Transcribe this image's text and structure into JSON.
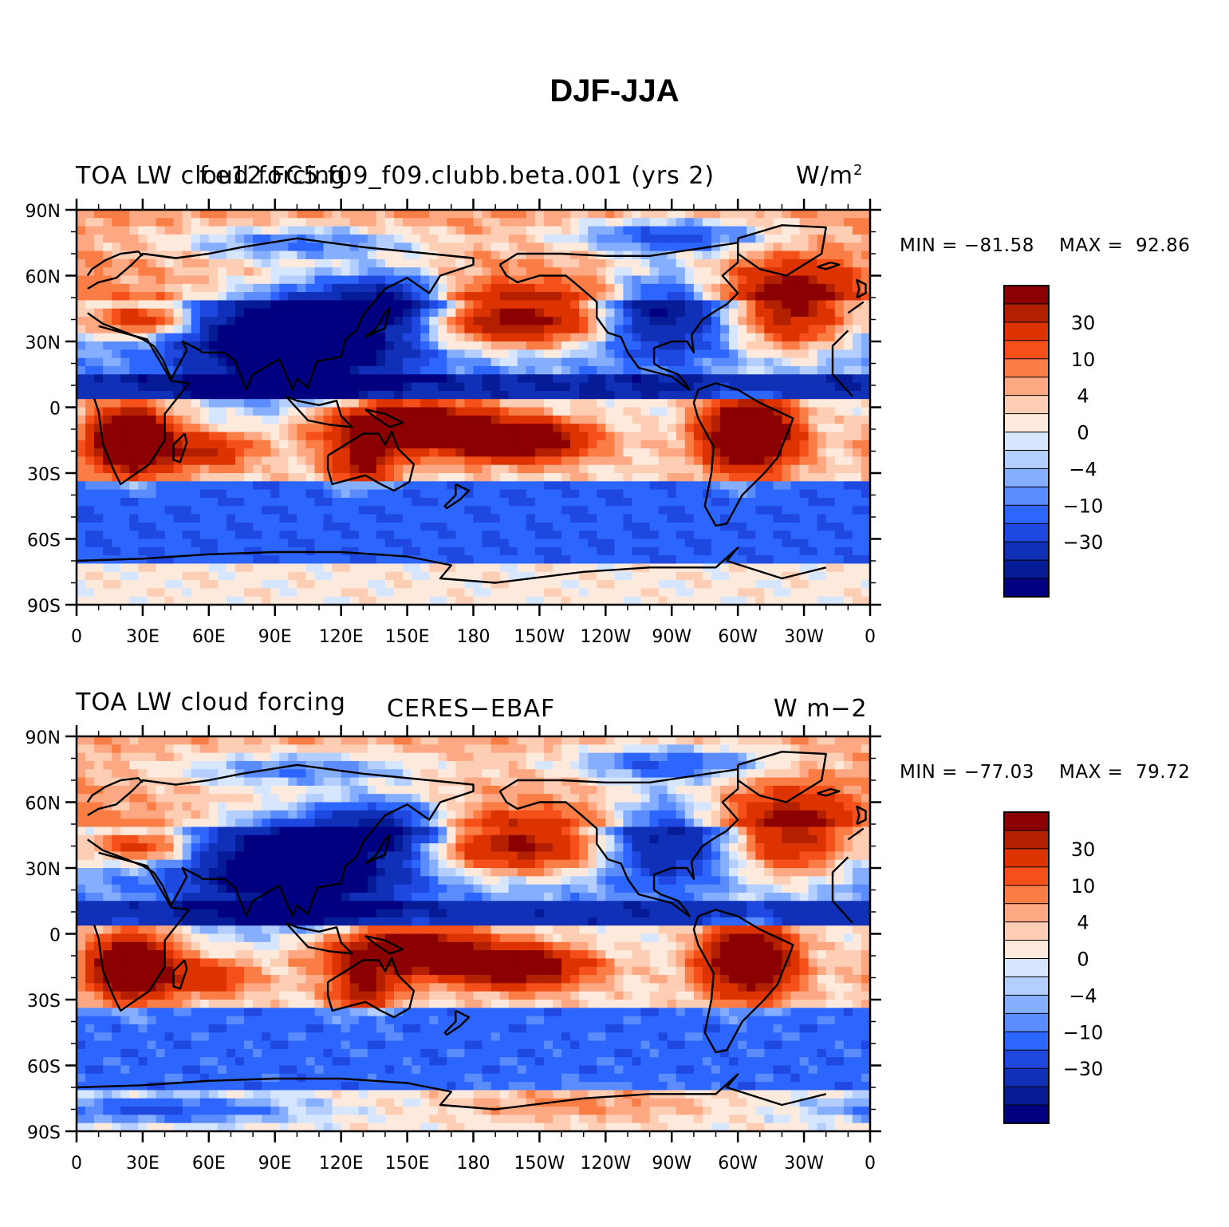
{
  "title": "DJF-JJA",
  "panels": [
    {
      "left_label": "TOA LW cloud forcing",
      "center_label": "f.e12.FC5.f09_f09.clubb.beta.001 (yrs 2)",
      "units_base": "W/m",
      "units_sup": "2",
      "min_label": "MIN = −81.58",
      "max_label": "MAX =  92.86",
      "min": -81.58,
      "max": 92.86
    },
    {
      "left_label": "TOA LW cloud forcing",
      "center_label": "CERES−EBAF",
      "units_base": "W m−2",
      "units_sup": "",
      "min_label": "MIN = −77.03",
      "max_label": "MAX =  79.72",
      "min": -77.03,
      "max": 79.72
    }
  ],
  "lat_ticks": [
    "90N",
    "60N",
    "30N",
    "0",
    "30S",
    "60S",
    "90S"
  ],
  "lon_ticks": [
    "0",
    "30E",
    "60E",
    "90E",
    "120E",
    "150E",
    "180",
    "150W",
    "120W",
    "90W",
    "60W",
    "30W",
    "0"
  ],
  "colorbar": {
    "colors": [
      "#8b0000",
      "#b22000",
      "#dd3300",
      "#f5501a",
      "#fa7d45",
      "#fda882",
      "#fdcdb4",
      "#feeadd",
      "#d6e6ff",
      "#b3ceff",
      "#86aeff",
      "#5a8cff",
      "#2d66ff",
      "#1e48e0",
      "#1030b8",
      "#061b96",
      "#000080"
    ],
    "labels": [
      "30",
      "10",
      "4",
      "0",
      "−4",
      "−10",
      "−30"
    ]
  },
  "chart_data": {
    "type": "heatmap",
    "title": "DJF-JJA",
    "variable": "TOA LW cloud forcing",
    "x_axis": {
      "range": [
        0,
        360
      ],
      "ticks": [
        "0",
        "30E",
        "60E",
        "90E",
        "120E",
        "150E",
        "180",
        "150W",
        "120W",
        "90W",
        "60W",
        "30W",
        "0"
      ]
    },
    "y_axis": {
      "range": [
        -90,
        90
      ],
      "ticks": [
        "90N",
        "60N",
        "30N",
        "0",
        "30S",
        "60S",
        "90S"
      ]
    },
    "contour_levels": [
      -40,
      -35,
      -30,
      -20,
      -15,
      -10,
      -7,
      -4,
      -2,
      0,
      2,
      4,
      7,
      10,
      15,
      20,
      30,
      35
    ],
    "level_labels": [
      "30",
      "10",
      "4",
      "0",
      "−4",
      "−10",
      "−30"
    ],
    "series": [
      {
        "name": "f.e12.FC5.f09_f09.clubb.beta.001 (yrs 2)",
        "units": "W/m2",
        "min": -81.58,
        "max": 92.86
      },
      {
        "name": "CERES−EBAF",
        "units": "W m−2",
        "min": -77.03,
        "max": 79.72
      }
    ]
  }
}
